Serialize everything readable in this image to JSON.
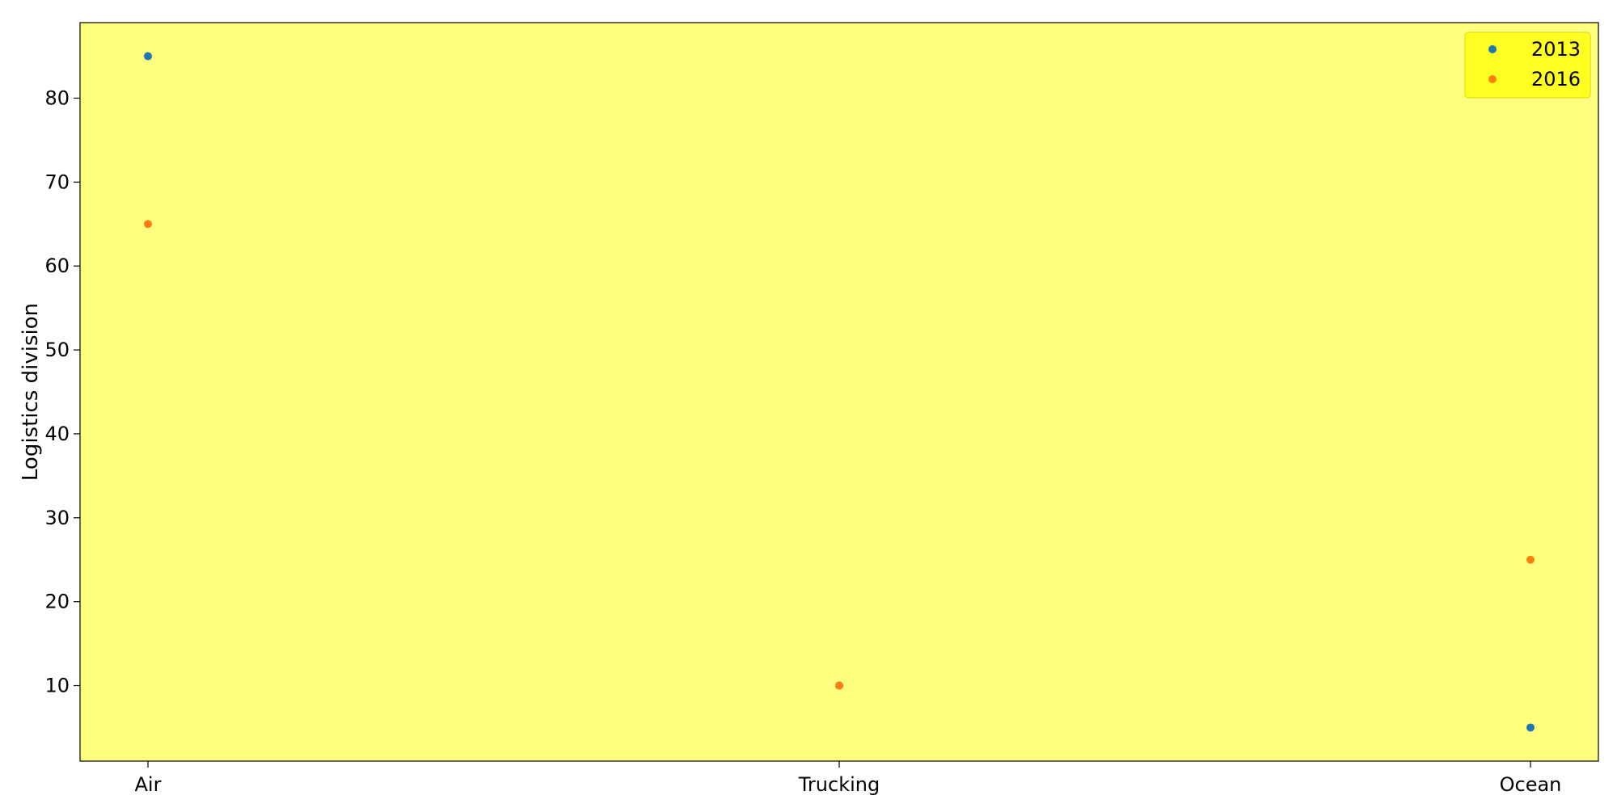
{
  "chart_data": {
    "type": "scatter",
    "categories": [
      "Air",
      "Trucking",
      "Ocean"
    ],
    "series": [
      {
        "name": "2013",
        "color": "#1f77b4",
        "values": [
          85,
          10,
          5
        ]
      },
      {
        "name": "2016",
        "color": "#ff7f0e",
        "values": [
          65,
          10,
          25
        ]
      }
    ],
    "ylabel": "Logistics division",
    "xlabel": "",
    "ylim": [
      1,
      89
    ],
    "yticks": [
      10,
      20,
      30,
      40,
      50,
      60,
      70,
      80
    ],
    "grid": false,
    "legend_position": "top-right",
    "background_color": "#ffff7f",
    "legend_background_color": "#ffff22"
  }
}
